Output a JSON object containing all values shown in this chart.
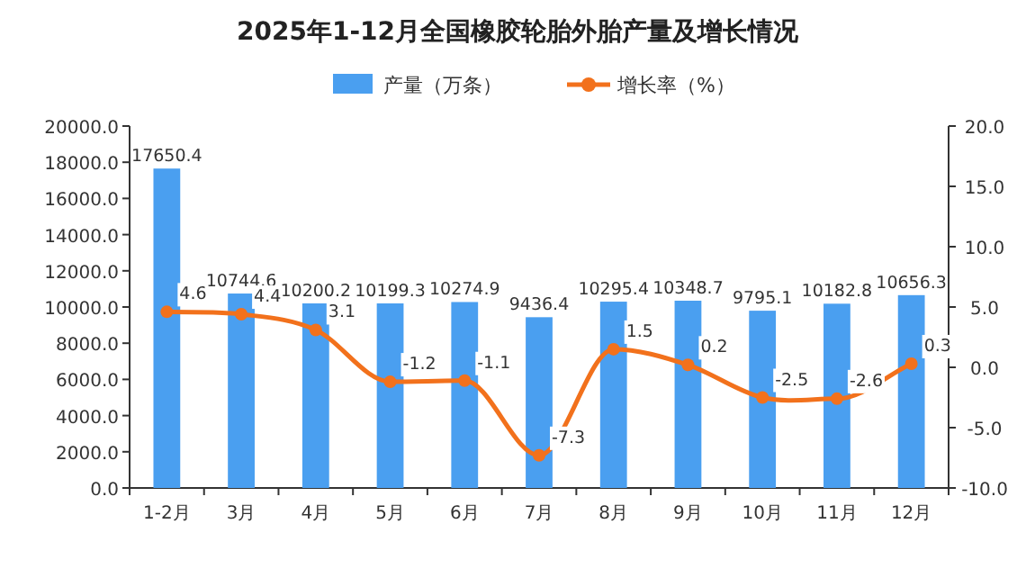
{
  "chart_data": {
    "type": "bar",
    "title": "2025年1-12月全国橡胶轮胎外胎产量及增长情况",
    "categories": [
      "1-2月",
      "3月",
      "4月",
      "5月",
      "6月",
      "7月",
      "8月",
      "9月",
      "10月",
      "11月",
      "12月"
    ],
    "series": [
      {
        "name": "产量（万条）",
        "color": "#4a9ff0",
        "values": [
          17650.4,
          10744.6,
          10200.2,
          10199.3,
          10274.9,
          9436.4,
          10295.4,
          10348.7,
          9795.1,
          10182.8,
          10656.3
        ]
      },
      {
        "name": "增长率（%）",
        "type": "line",
        "axis": "y2",
        "marker": "circle",
        "color": "#f2711c",
        "values": [
          4.6,
          4.4,
          3.1,
          -1.2,
          -1.1,
          -7.3,
          1.5,
          0.2,
          -2.5,
          -2.6,
          0.3
        ]
      }
    ],
    "ylim": [
      0,
      20000
    ],
    "yticks": [
      {
        "value": 0,
        "label": "0.0"
      },
      {
        "value": 2000,
        "label": "2000.0"
      },
      {
        "value": 4000,
        "label": "4000.0"
      },
      {
        "value": 6000,
        "label": "6000.0"
      },
      {
        "value": 8000,
        "label": "8000.0"
      },
      {
        "value": 10000,
        "label": "10000.0"
      },
      {
        "value": 12000,
        "label": "12000.0"
      },
      {
        "value": 14000,
        "label": "14000.0"
      },
      {
        "value": 16000,
        "label": "16000.0"
      },
      {
        "value": 18000,
        "label": "18000.0"
      },
      {
        "value": 20000,
        "label": "20000.0"
      }
    ],
    "y2lim": [
      -10,
      20
    ],
    "y2ticks": [
      {
        "value": -10,
        "label": "-10.0"
      },
      {
        "value": -5,
        "label": "-5.0"
      },
      {
        "value": 0,
        "label": "0.0"
      },
      {
        "value": 5,
        "label": "5.0"
      },
      {
        "value": 10,
        "label": "10.0"
      },
      {
        "value": 15,
        "label": "15.0"
      },
      {
        "value": 20,
        "label": "20.0"
      }
    ],
    "legend": "top",
    "data_labels": true
  }
}
